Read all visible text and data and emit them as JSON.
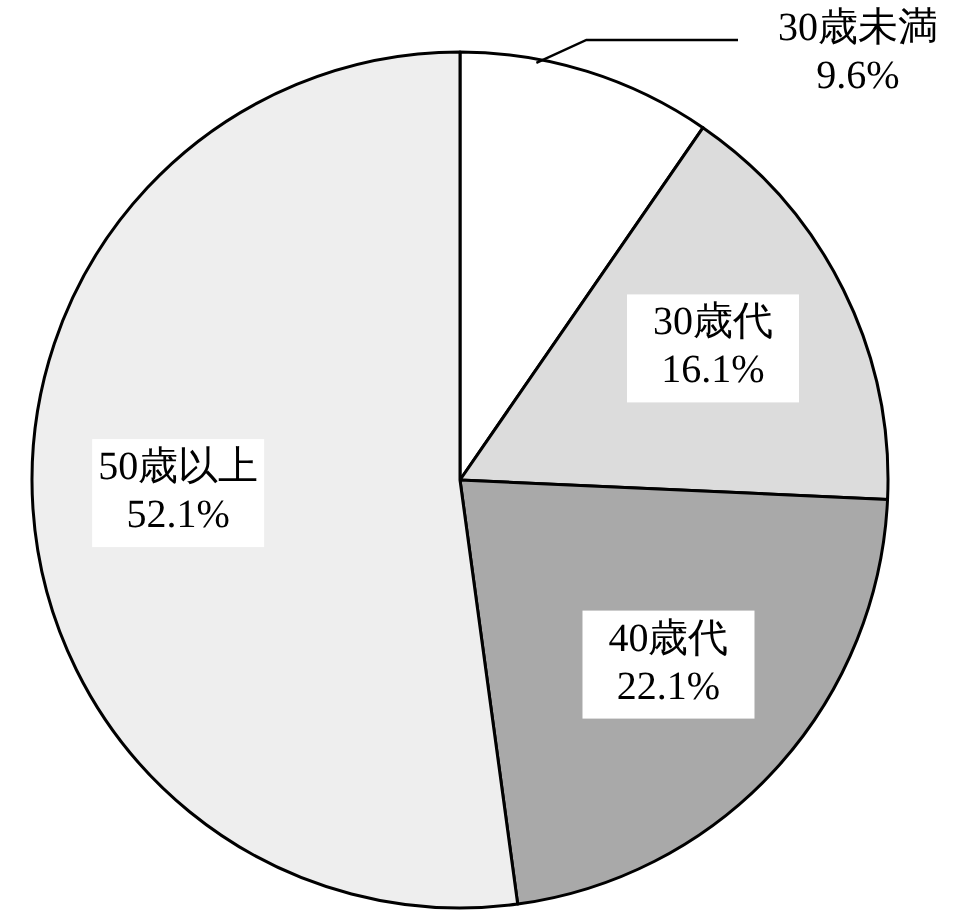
{
  "chart_data": {
    "type": "pie",
    "categories": [
      "30歳未満",
      "30歳代",
      "40歳代",
      "50歳以上"
    ],
    "values": [
      9.6,
      16.1,
      22.1,
      52.1
    ],
    "value_labels": [
      "9.6%",
      "16.1%",
      "22.1%",
      "52.1%"
    ],
    "colors": [
      "#ffffff",
      "#dcdcdc",
      "#a9a9a9",
      "#eeeeee"
    ]
  }
}
